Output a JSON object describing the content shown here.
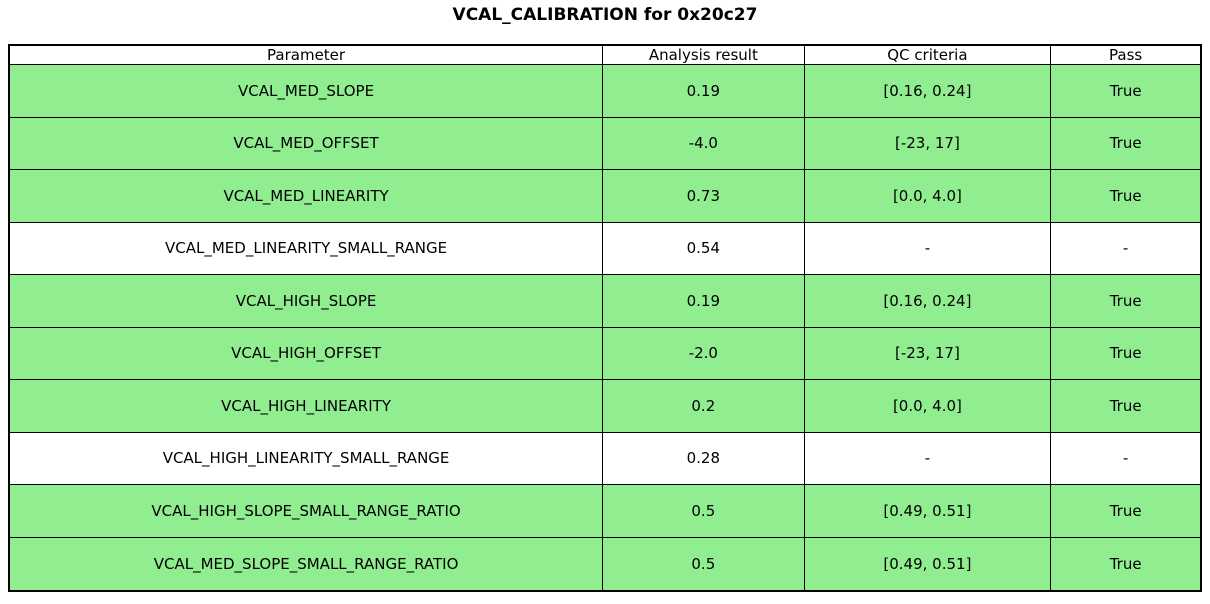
{
  "title": "VCAL_CALIBRATION for 0x20c27",
  "colors": {
    "pass_row_background": "#90ee90",
    "border": "#000000",
    "text": "#000000",
    "page_background": "#ffffff"
  },
  "chart_data": {
    "type": "table",
    "title": "VCAL_CALIBRATION for 0x20c27",
    "columns": [
      "Parameter",
      "Analysis result",
      "QC criteria",
      "Pass"
    ],
    "rows": [
      {
        "cells": [
          "VCAL_MED_SLOPE",
          "0.19",
          "[0.16, 0.24]",
          "True"
        ],
        "highlight": true
      },
      {
        "cells": [
          "VCAL_MED_OFFSET",
          "-4.0",
          "[-23, 17]",
          "True"
        ],
        "highlight": true
      },
      {
        "cells": [
          "VCAL_MED_LINEARITY",
          "0.73",
          "[0.0, 4.0]",
          "True"
        ],
        "highlight": true
      },
      {
        "cells": [
          "VCAL_MED_LINEARITY_SMALL_RANGE",
          "0.54",
          "-",
          "-"
        ],
        "highlight": false
      },
      {
        "cells": [
          "VCAL_HIGH_SLOPE",
          "0.19",
          "[0.16, 0.24]",
          "True"
        ],
        "highlight": true
      },
      {
        "cells": [
          "VCAL_HIGH_OFFSET",
          "-2.0",
          "[-23, 17]",
          "True"
        ],
        "highlight": true
      },
      {
        "cells": [
          "VCAL_HIGH_LINEARITY",
          "0.2",
          "[0.0, 4.0]",
          "True"
        ],
        "highlight": true
      },
      {
        "cells": [
          "VCAL_HIGH_LINEARITY_SMALL_RANGE",
          "0.28",
          "-",
          "-"
        ],
        "highlight": false
      },
      {
        "cells": [
          "VCAL_HIGH_SLOPE_SMALL_RANGE_RATIO",
          "0.5",
          "[0.49, 0.51]",
          "True"
        ],
        "highlight": true
      },
      {
        "cells": [
          "VCAL_MED_SLOPE_SMALL_RANGE_RATIO",
          "0.5",
          "[0.49, 0.51]",
          "True"
        ],
        "highlight": true
      }
    ],
    "layout": {
      "highlight_meaning": "row passed QC",
      "grid": true,
      "legend": "none"
    }
  }
}
